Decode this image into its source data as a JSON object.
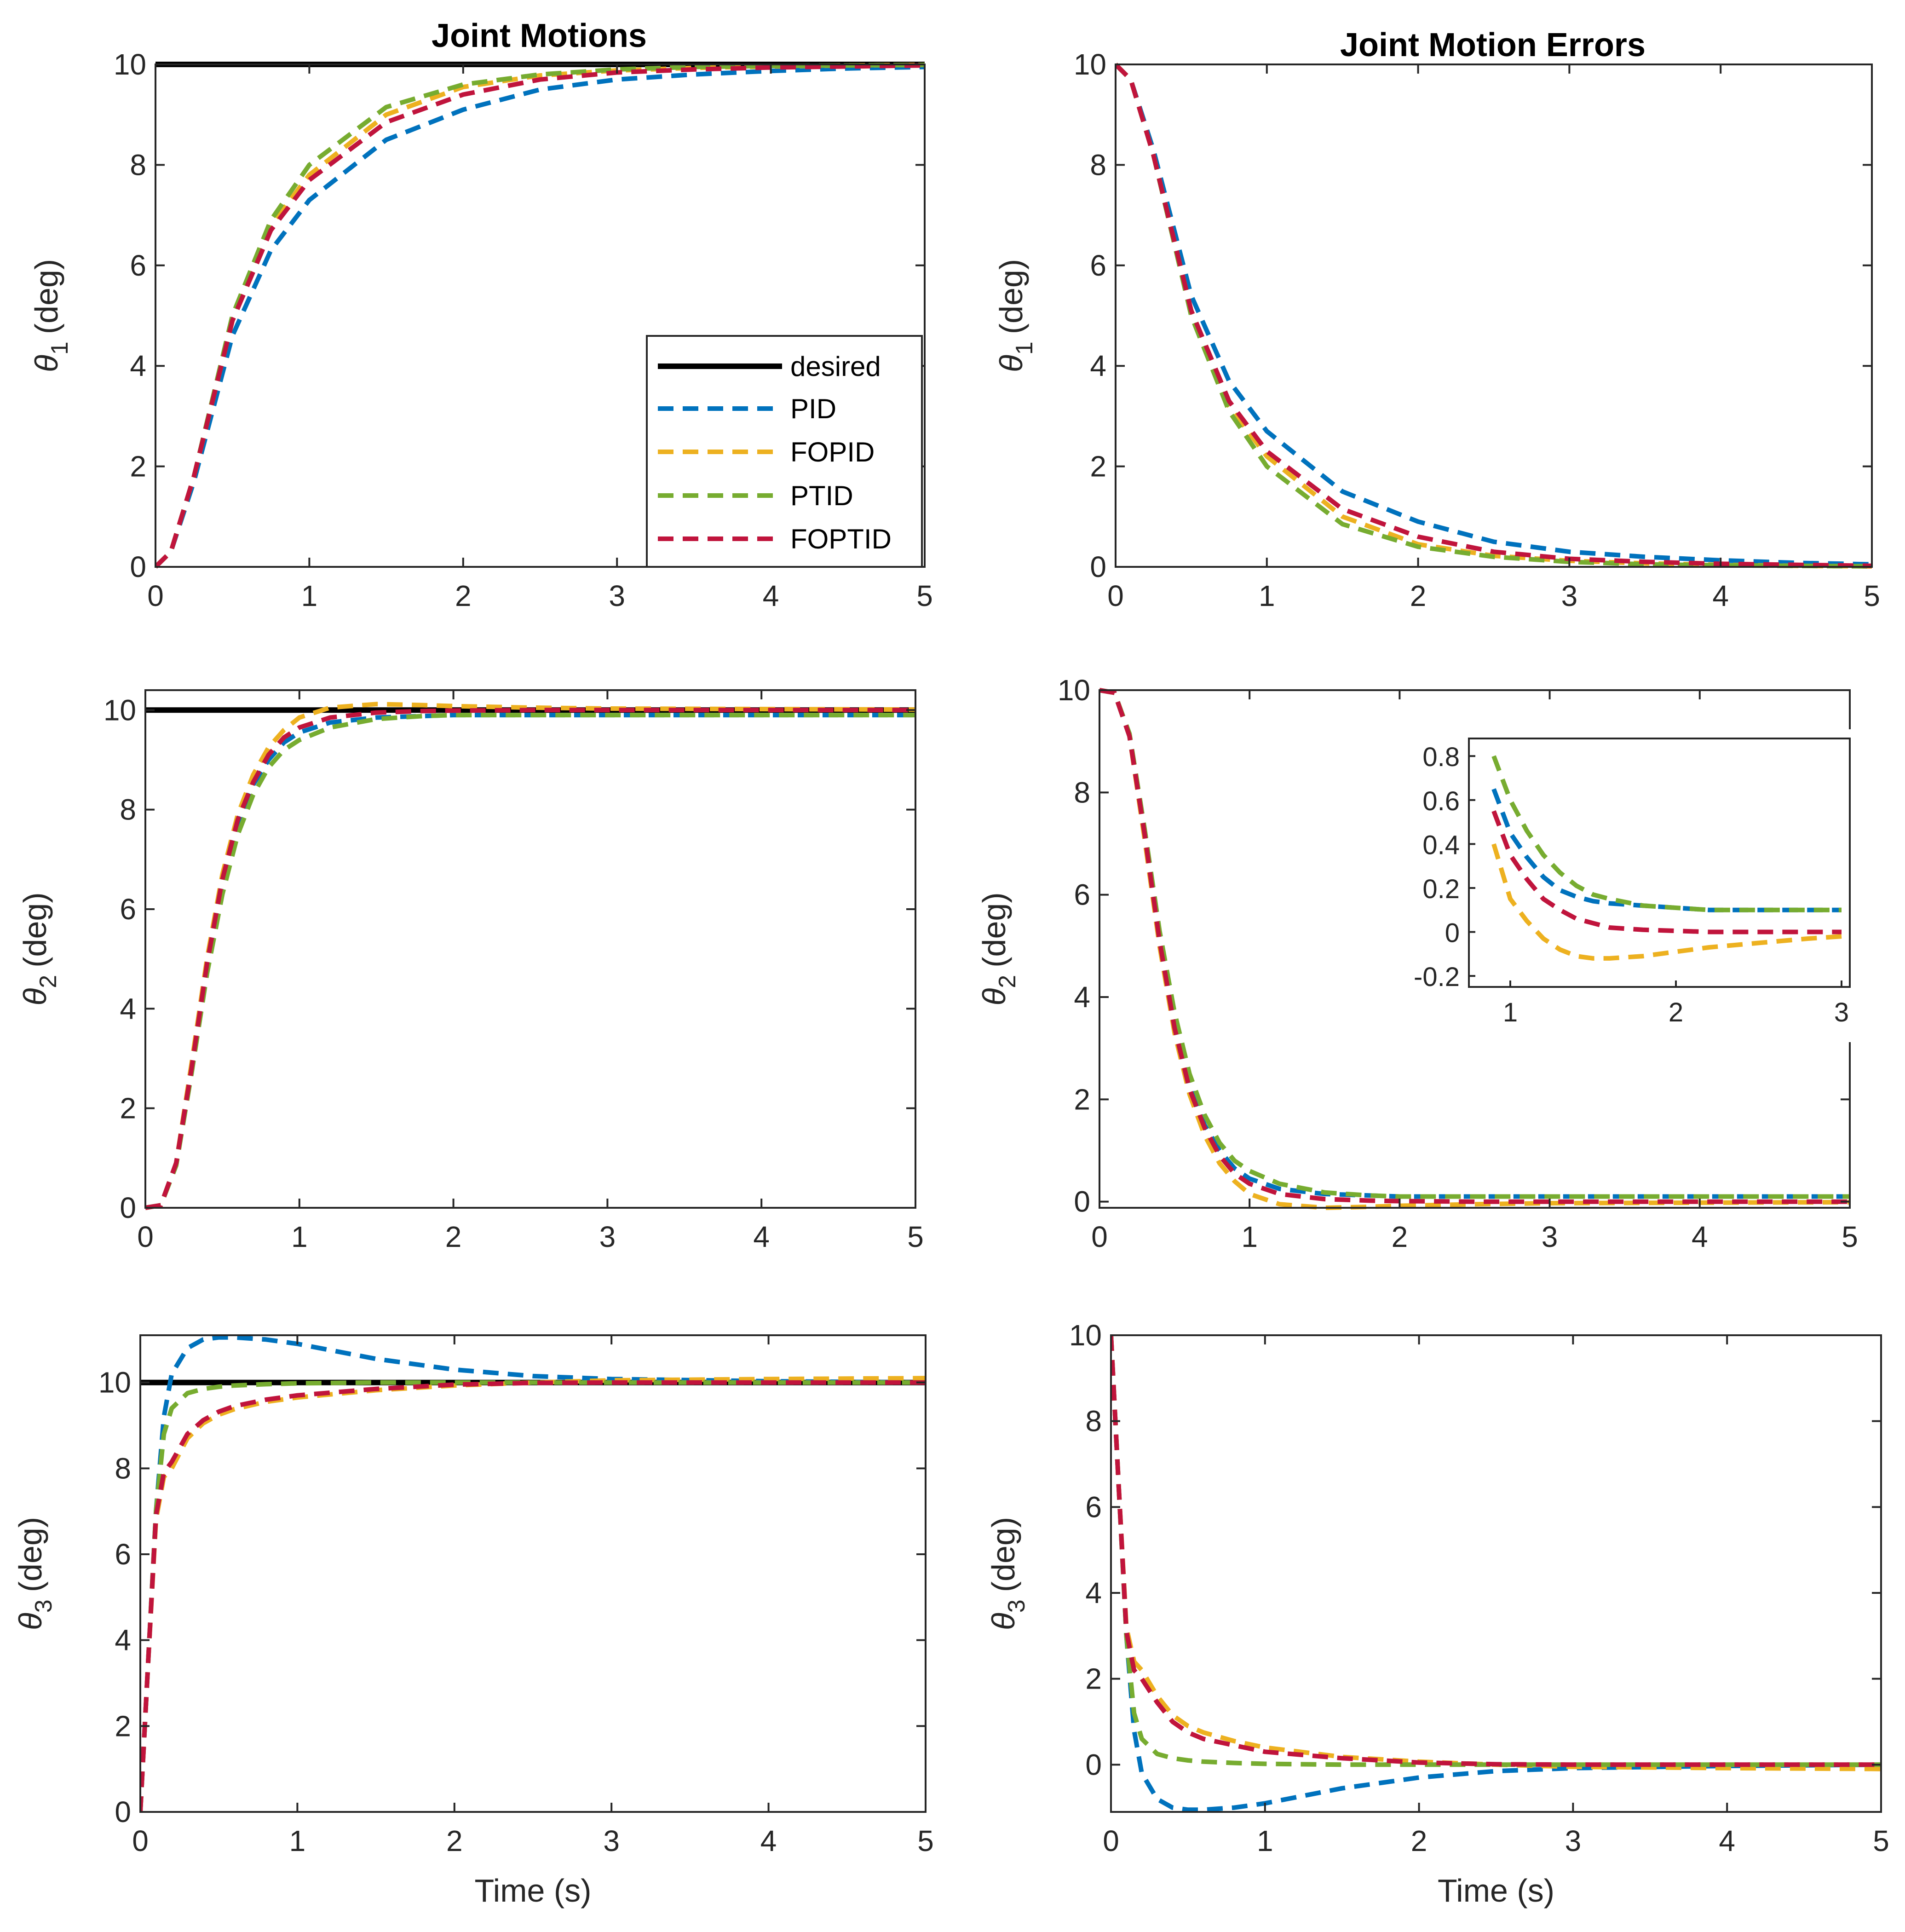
{
  "figure": {
    "left_title": "Joint Motions",
    "right_title": "Joint Motion Errors",
    "xlabel": "Time (s)"
  },
  "legend": {
    "entries": [
      "desired",
      "PID",
      "FOPID",
      "PTID",
      "FOPTID"
    ],
    "location": "inside-lower-right of top-left panel"
  },
  "colors": {
    "desired": "#000000",
    "PID": "#0072BD",
    "FOPID": "#EDB120",
    "PTID": "#77AC30",
    "FOPTID": "#C0143C",
    "axes": "#262626"
  },
  "chart_data": [
    {
      "id": "motion1",
      "type": "line",
      "title": "Joint Motions",
      "ylabel_sym": "θ",
      "ylabel_sub": "1",
      "ylabel_unit": "(deg)",
      "xlabel": "",
      "xlim": [
        0,
        5
      ],
      "ylim": [
        0,
        10
      ],
      "xticks": [
        0,
        1,
        2,
        3,
        4,
        5
      ],
      "yticks": [
        0,
        2,
        4,
        6,
        8,
        10
      ],
      "x": [
        0,
        0.1,
        0.25,
        0.5,
        0.75,
        1,
        1.5,
        2,
        2.5,
        3,
        3.5,
        4,
        4.5,
        5
      ],
      "series": [
        {
          "name": "desired",
          "values": [
            10,
            10,
            10,
            10,
            10,
            10,
            10,
            10,
            10,
            10,
            10,
            10,
            10,
            10
          ]
        },
        {
          "name": "PID",
          "values": [
            0,
            0.3,
            1.7,
            4.6,
            6.3,
            7.3,
            8.5,
            9.1,
            9.5,
            9.7,
            9.8,
            9.87,
            9.92,
            9.95
          ]
        },
        {
          "name": "FOPID",
          "values": [
            0,
            0.3,
            1.8,
            4.9,
            6.8,
            7.8,
            9.0,
            9.55,
            9.78,
            9.88,
            9.93,
            9.96,
            9.98,
            9.99
          ]
        },
        {
          "name": "PTID",
          "values": [
            0,
            0.3,
            1.8,
            5.0,
            6.9,
            8.0,
            9.15,
            9.6,
            9.8,
            9.9,
            9.95,
            9.97,
            9.98,
            9.99
          ]
        },
        {
          "name": "FOPTID",
          "values": [
            0,
            0.3,
            1.8,
            4.9,
            6.7,
            7.7,
            8.85,
            9.4,
            9.7,
            9.84,
            9.9,
            9.94,
            9.96,
            9.98
          ]
        }
      ]
    },
    {
      "id": "error1",
      "type": "line",
      "title": "Joint Motion Errors",
      "ylabel_sym": "θ",
      "ylabel_sub": "1",
      "ylabel_unit": "(deg)",
      "xlabel": "",
      "xlim": [
        0,
        5
      ],
      "ylim": [
        0,
        10
      ],
      "xticks": [
        0,
        1,
        2,
        3,
        4,
        5
      ],
      "yticks": [
        0,
        2,
        4,
        6,
        8,
        10
      ],
      "x": [
        0,
        0.1,
        0.25,
        0.5,
        0.75,
        1,
        1.5,
        2,
        2.5,
        3,
        3.5,
        4,
        4.5,
        5
      ],
      "series": [
        {
          "name": "PID",
          "values": [
            10,
            9.7,
            8.3,
            5.4,
            3.7,
            2.7,
            1.5,
            0.9,
            0.5,
            0.3,
            0.2,
            0.13,
            0.08,
            0.05
          ]
        },
        {
          "name": "FOPID",
          "values": [
            10,
            9.7,
            8.2,
            5.1,
            3.2,
            2.2,
            1.0,
            0.45,
            0.22,
            0.12,
            0.07,
            0.04,
            0.02,
            0.01
          ]
        },
        {
          "name": "PTID",
          "values": [
            10,
            9.7,
            8.2,
            5.0,
            3.1,
            2.0,
            0.85,
            0.4,
            0.2,
            0.1,
            0.05,
            0.03,
            0.02,
            0.01
          ]
        },
        {
          "name": "FOPTID",
          "values": [
            10,
            9.7,
            8.2,
            5.1,
            3.3,
            2.3,
            1.15,
            0.6,
            0.3,
            0.16,
            0.1,
            0.06,
            0.04,
            0.02
          ]
        }
      ]
    },
    {
      "id": "motion2",
      "type": "line",
      "title": "",
      "ylabel_sym": "θ",
      "ylabel_sub": "2",
      "ylabel_unit": "(deg)",
      "xlabel": "",
      "xlim": [
        0,
        5
      ],
      "ylim": [
        0,
        10.4
      ],
      "xticks": [
        0,
        1,
        2,
        3,
        4,
        5
      ],
      "yticks": [
        0,
        2,
        4,
        6,
        8,
        10
      ],
      "x": [
        0,
        0.1,
        0.2,
        0.3,
        0.4,
        0.5,
        0.6,
        0.7,
        0.8,
        0.9,
        1.0,
        1.2,
        1.5,
        1.8,
        2.0,
        2.5,
        3,
        4,
        5
      ],
      "series": [
        {
          "name": "desired",
          "values": [
            10,
            10,
            10,
            10,
            10,
            10,
            10,
            10,
            10,
            10,
            10,
            10,
            10,
            10,
            10,
            10,
            10,
            10,
            10
          ]
        },
        {
          "name": "PID",
          "values": [
            0,
            0.05,
            0.9,
            2.8,
            4.8,
            6.5,
            7.7,
            8.5,
            9.0,
            9.35,
            9.55,
            9.75,
            9.85,
            9.88,
            9.9,
            9.9,
            9.9,
            9.9,
            9.9
          ]
        },
        {
          "name": "FOPID",
          "values": [
            0,
            0.05,
            0.9,
            2.9,
            5.0,
            6.7,
            7.9,
            8.7,
            9.25,
            9.6,
            9.85,
            10.05,
            10.12,
            10.1,
            10.08,
            10.05,
            10.03,
            10.02,
            10.01
          ]
        },
        {
          "name": "PTID",
          "values": [
            0,
            0.05,
            0.85,
            2.7,
            4.7,
            6.3,
            7.5,
            8.3,
            8.85,
            9.2,
            9.4,
            9.65,
            9.82,
            9.88,
            9.9,
            9.9,
            9.9,
            9.9,
            9.9
          ]
        },
        {
          "name": "FOPTID",
          "values": [
            0,
            0.05,
            0.9,
            2.8,
            4.9,
            6.6,
            7.8,
            8.55,
            9.1,
            9.45,
            9.65,
            9.85,
            9.95,
            9.98,
            9.99,
            10.0,
            10.0,
            10.0,
            10.0
          ]
        }
      ]
    },
    {
      "id": "error2",
      "type": "line",
      "title": "",
      "ylabel_sym": "θ",
      "ylabel_sub": "2",
      "ylabel_unit": "(deg)",
      "xlabel": "",
      "xlim": [
        0,
        5
      ],
      "ylim": [
        -0.12,
        10
      ],
      "xticks": [
        0,
        1,
        2,
        3,
        4,
        5
      ],
      "yticks": [
        0,
        2,
        4,
        6,
        8,
        10
      ],
      "x": [
        0,
        0.1,
        0.2,
        0.3,
        0.4,
        0.5,
        0.6,
        0.7,
        0.8,
        0.9,
        1.0,
        1.2,
        1.5,
        1.8,
        2.0,
        2.5,
        3,
        4,
        5
      ],
      "series": [
        {
          "name": "PID",
          "values": [
            10,
            9.95,
            9.1,
            7.2,
            5.2,
            3.5,
            2.3,
            1.5,
            1.0,
            0.65,
            0.45,
            0.25,
            0.15,
            0.12,
            0.1,
            0.1,
            0.1,
            0.1,
            0.1
          ]
        },
        {
          "name": "FOPID",
          "values": [
            10,
            9.95,
            9.1,
            7.1,
            5.0,
            3.3,
            2.1,
            1.3,
            0.75,
            0.4,
            0.15,
            -0.05,
            -0.12,
            -0.1,
            -0.08,
            -0.05,
            -0.03,
            -0.02,
            -0.01
          ]
        },
        {
          "name": "PTID",
          "values": [
            10,
            9.95,
            9.15,
            7.3,
            5.3,
            3.7,
            2.5,
            1.7,
            1.15,
            0.8,
            0.6,
            0.35,
            0.18,
            0.12,
            0.1,
            0.1,
            0.1,
            0.1,
            0.1
          ]
        },
        {
          "name": "FOPTID",
          "values": [
            10,
            9.95,
            9.1,
            7.2,
            5.1,
            3.4,
            2.2,
            1.45,
            0.9,
            0.55,
            0.35,
            0.15,
            0.05,
            0.02,
            0.01,
            0.0,
            0.0,
            0.0,
            0.0
          ]
        }
      ]
    },
    {
      "id": "error2_inset",
      "type": "line",
      "title": "",
      "ylabel_sym": "",
      "ylabel_sub": "",
      "ylabel_unit": "",
      "xlabel": "",
      "xlim": [
        0.75,
        3.05
      ],
      "ylim": [
        -0.25,
        0.88
      ],
      "xticks": [
        1,
        2,
        3
      ],
      "yticks": [
        -0.2,
        0,
        0.2,
        0.4,
        0.6,
        0.8
      ],
      "x": [
        0.9,
        1.0,
        1.1,
        1.2,
        1.3,
        1.4,
        1.5,
        1.6,
        1.8,
        2.0,
        2.2,
        2.5,
        2.8,
        3.0
      ],
      "series": [
        {
          "name": "PID",
          "values": [
            0.65,
            0.45,
            0.34,
            0.25,
            0.19,
            0.16,
            0.14,
            0.13,
            0.12,
            0.11,
            0.1,
            0.1,
            0.1,
            0.1
          ]
        },
        {
          "name": "FOPID",
          "values": [
            0.4,
            0.15,
            0.05,
            -0.03,
            -0.08,
            -0.11,
            -0.12,
            -0.12,
            -0.11,
            -0.09,
            -0.07,
            -0.05,
            -0.03,
            -0.02
          ]
        },
        {
          "name": "PTID",
          "values": [
            0.8,
            0.6,
            0.46,
            0.35,
            0.27,
            0.21,
            0.17,
            0.15,
            0.12,
            0.11,
            0.1,
            0.1,
            0.1,
            0.1
          ]
        },
        {
          "name": "FOPTID",
          "values": [
            0.55,
            0.35,
            0.24,
            0.15,
            0.1,
            0.06,
            0.04,
            0.02,
            0.01,
            0.005,
            0.0,
            0.0,
            0.0,
            0.0
          ]
        }
      ]
    },
    {
      "id": "motion3",
      "type": "line",
      "title": "",
      "ylabel_sym": "θ",
      "ylabel_sub": "3",
      "ylabel_unit": "(deg)",
      "xlabel": "Time (s)",
      "xlim": [
        0,
        5
      ],
      "ylim": [
        0,
        11.1
      ],
      "xticks": [
        0,
        1,
        2,
        3,
        4,
        5
      ],
      "yticks": [
        0,
        2,
        4,
        6,
        8,
        10
      ],
      "x": [
        0,
        0.05,
        0.1,
        0.15,
        0.2,
        0.3,
        0.4,
        0.5,
        0.6,
        0.8,
        1.0,
        1.5,
        2.0,
        2.5,
        3,
        4,
        5
      ],
      "series": [
        {
          "name": "desired",
          "values": [
            10,
            10,
            10,
            10,
            10,
            10,
            10,
            10,
            10,
            10,
            10,
            10,
            10,
            10,
            10,
            10,
            10
          ]
        },
        {
          "name": "PID",
          "values": [
            0,
            3.5,
            7.0,
            9.2,
            10.2,
            10.8,
            11.0,
            11.05,
            11.05,
            11.0,
            10.9,
            10.55,
            10.3,
            10.15,
            10.08,
            10.03,
            10.0
          ]
        },
        {
          "name": "FOPID",
          "values": [
            0,
            3.5,
            6.8,
            7.8,
            8.0,
            8.7,
            9.05,
            9.25,
            9.38,
            9.55,
            9.65,
            9.82,
            9.93,
            10.0,
            10.05,
            10.08,
            10.1
          ]
        },
        {
          "name": "PTID",
          "values": [
            0,
            3.5,
            7.0,
            8.8,
            9.4,
            9.75,
            9.85,
            9.9,
            9.93,
            9.96,
            9.98,
            10.0,
            10.0,
            10.0,
            10.0,
            10.0,
            10.0
          ]
        },
        {
          "name": "FOPTID",
          "values": [
            0,
            3.5,
            6.9,
            7.9,
            8.15,
            8.8,
            9.12,
            9.32,
            9.45,
            9.6,
            9.7,
            9.85,
            9.95,
            9.99,
            10.0,
            10.0,
            10.0
          ]
        }
      ]
    },
    {
      "id": "error3",
      "type": "line",
      "title": "",
      "ylabel_sym": "θ",
      "ylabel_sub": "3",
      "ylabel_unit": "(deg)",
      "xlabel": "Time (s)",
      "xlim": [
        0,
        5
      ],
      "ylim": [
        -1.1,
        10
      ],
      "xticks": [
        0,
        1,
        2,
        3,
        4,
        5
      ],
      "yticks": [
        0,
        2,
        4,
        6,
        8,
        10
      ],
      "x": [
        0,
        0.05,
        0.1,
        0.15,
        0.2,
        0.3,
        0.4,
        0.5,
        0.6,
        0.8,
        1.0,
        1.5,
        2.0,
        2.5,
        3,
        4,
        5
      ],
      "series": [
        {
          "name": "PID",
          "values": [
            10,
            6.5,
            3.0,
            0.8,
            -0.2,
            -0.8,
            -1.0,
            -1.05,
            -1.05,
            -1.0,
            -0.9,
            -0.55,
            -0.3,
            -0.15,
            -0.08,
            -0.03,
            0.0
          ]
        },
        {
          "name": "FOPID",
          "values": [
            10,
            6.5,
            3.2,
            2.4,
            2.2,
            1.6,
            1.15,
            0.9,
            0.75,
            0.55,
            0.4,
            0.18,
            0.07,
            0.0,
            -0.05,
            -0.08,
            -0.1
          ]
        },
        {
          "name": "PTID",
          "values": [
            10,
            6.5,
            3.0,
            1.2,
            0.6,
            0.25,
            0.15,
            0.1,
            0.07,
            0.04,
            0.02,
            0.0,
            0.0,
            0.0,
            0.0,
            0.0,
            0.0
          ]
        },
        {
          "name": "FOPTID",
          "values": [
            10,
            6.5,
            3.1,
            2.2,
            2.0,
            1.45,
            1.0,
            0.75,
            0.6,
            0.45,
            0.3,
            0.15,
            0.05,
            0.01,
            0.0,
            0.0,
            0.0
          ]
        }
      ]
    }
  ]
}
